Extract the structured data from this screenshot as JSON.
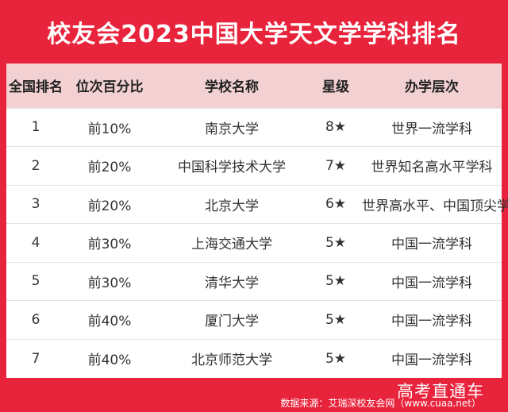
{
  "title": "校友会2023中国大学天文学学科排名",
  "table": {
    "headers": [
      "全国排名",
      "位次百分比",
      "学校名称",
      "星级",
      "办学层次"
    ],
    "rows": [
      [
        "1",
        "前10%",
        "南京大学",
        "8★",
        "世界一流学科"
      ],
      [
        "2",
        "前20%",
        "中国科学技术大学",
        "7★",
        "世界知名高水平学科"
      ],
      [
        "3",
        "前20%",
        "北京大学",
        "6★",
        "世界高水平、中国顶尖学科"
      ],
      [
        "4",
        "前30%",
        "上海交通大学",
        "5★",
        "中国一流学科"
      ],
      [
        "5",
        "前30%",
        "清华大学",
        "5★",
        "中国一流学科"
      ],
      [
        "6",
        "前40%",
        "厦门大学",
        "5★",
        "中国一流学科"
      ],
      [
        "7",
        "前40%",
        "北京师范大学",
        "5★",
        "中国一流学科"
      ]
    ]
  },
  "footer": {
    "source": "数据来源：艾瑞深校友会网（www.cuaa.net）",
    "watermark": "高考直通车"
  },
  "colors": {
    "background": "#e8243c",
    "header_row": "#f3d1d3"
  }
}
